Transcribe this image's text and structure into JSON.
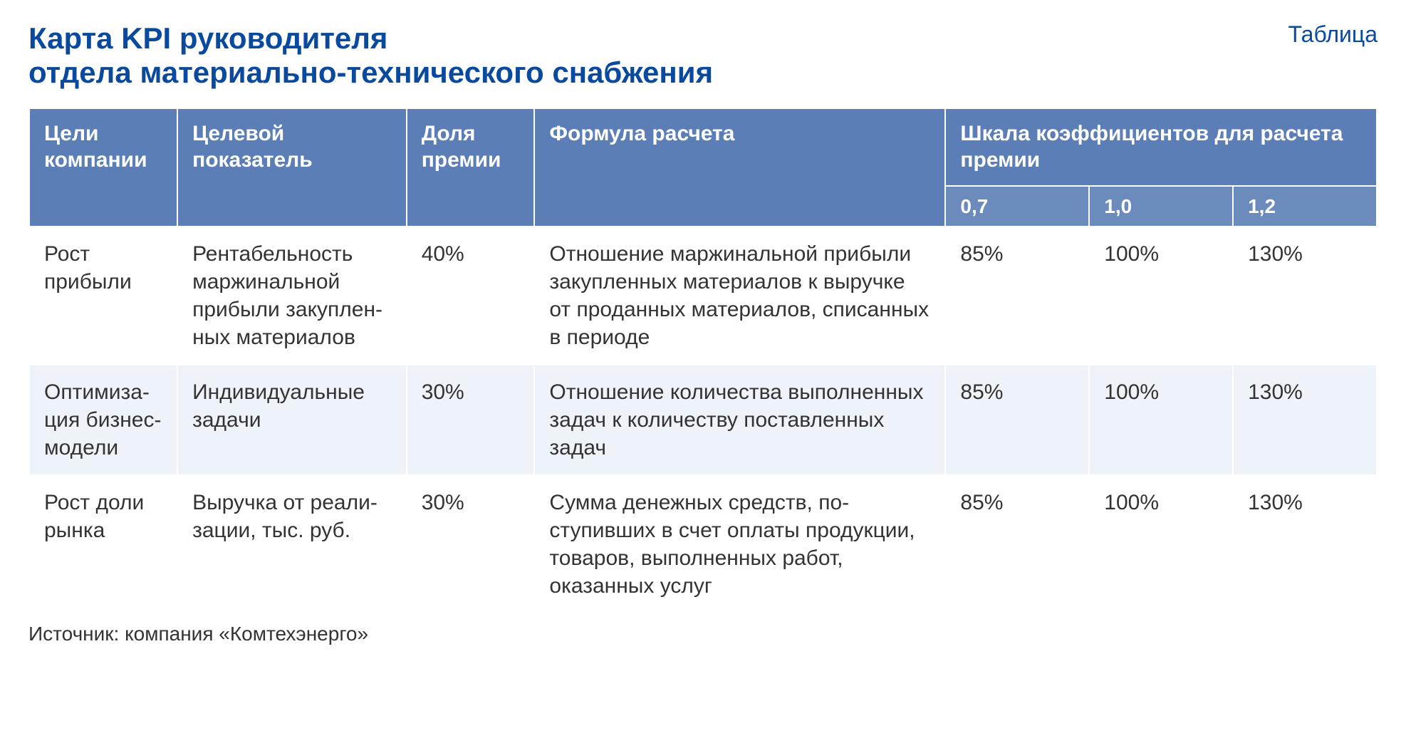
{
  "header": {
    "title": "Карта KPI руководителя\nотдела материально-технического снабжения",
    "table_label": "Таблица"
  },
  "table": {
    "type": "table",
    "background_color": "#ffffff",
    "alt_row_color": "#eef3f9",
    "header_bg": "#5a7eb5",
    "subheader_bg": "#6b8bbd",
    "header_text_color": "#ffffff",
    "border_color": "#ffffff",
    "title_color": "#0a4a9e",
    "body_text_color": "#333333",
    "header_fontsize": 30,
    "body_fontsize": 30,
    "title_fontsize": 42,
    "columns": {
      "goals": "Цели компании",
      "indicator": "Целевой показатель",
      "share": "Доля премии",
      "formula": "Формула расчета",
      "scale": "Шкала коэффициентов для расчета премии"
    },
    "scale_subcolumns": [
      "0,7",
      "1,0",
      "1,2"
    ],
    "rows": [
      {
        "goals": "Рост прибыли",
        "indicator": "Рентабельность маржинальной прибыли закуплен­ных материалов",
        "share": "40%",
        "formula": "Отношение маржинальной при­были закупленных материалов к выручке от проданных мате­риалов, списанных в периоде",
        "c0": "85%",
        "c1": "100%",
        "c2": "130%"
      },
      {
        "goals": "Оптимиза­ция бизнес-модели",
        "indicator": "Индивидуальные задачи",
        "share": "30%",
        "formula": "Отношение количества выпол­ненных задач к количеству по­ставленных задач",
        "c0": "85%",
        "c1": "100%",
        "c2": "130%"
      },
      {
        "goals": "Рост доли рынка",
        "indicator": "Выручка от реали­зации, тыс. руб.",
        "share": "30%",
        "formula": "Сумма денежных средств, по­ступивших в счет оплаты про­дукции, товаров, выполненных работ, оказанных услуг",
        "c0": "85%",
        "c1": "100%",
        "c2": "130%"
      }
    ]
  },
  "source": "Источник: компания «Комтехэнерго»"
}
